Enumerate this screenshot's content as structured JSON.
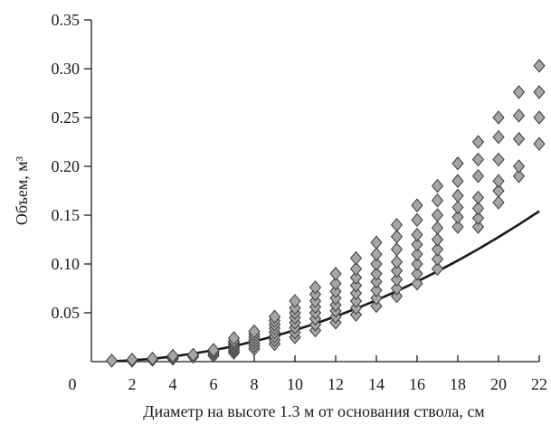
{
  "chart_data": {
    "type": "scatter",
    "title": "",
    "xlabel": "Диаметр на высоте 1.3 м от основания ствола, см",
    "ylabel": "Объем, м³",
    "xlim": [
      0,
      22
    ],
    "ylim": [
      0,
      0.35
    ],
    "x_ticks": [
      "0",
      "2",
      "4",
      "6",
      "8",
      "10",
      "12",
      "14",
      "16",
      "18",
      "20",
      "22"
    ],
    "y_ticks": [
      "0.05",
      "0.10",
      "0.15",
      "0.20",
      "0.25",
      "0.30",
      "0.35"
    ],
    "grid": false,
    "legend": "none",
    "marker": "diamond",
    "point_color": "#a6a6a6",
    "line_color": "#1a1a1a",
    "series": [
      {
        "type": "scatter",
        "points": [
          [
            1,
            0.001
          ],
          [
            2,
            0.001
          ],
          [
            2,
            0.002
          ],
          [
            3,
            0.002
          ],
          [
            3,
            0.003
          ],
          [
            4,
            0.003
          ],
          [
            4,
            0.004
          ],
          [
            4,
            0.006
          ],
          [
            5,
            0.005
          ],
          [
            5,
            0.007
          ],
          [
            6,
            0.006
          ],
          [
            6,
            0.008
          ],
          [
            6,
            0.01
          ],
          [
            6,
            0.012
          ],
          [
            7,
            0.009
          ],
          [
            7,
            0.011
          ],
          [
            7,
            0.013
          ],
          [
            7,
            0.015
          ],
          [
            7,
            0.017
          ],
          [
            7,
            0.019
          ],
          [
            7,
            0.021
          ],
          [
            7,
            0.024
          ],
          [
            8,
            0.013
          ],
          [
            8,
            0.016
          ],
          [
            8,
            0.019
          ],
          [
            8,
            0.022
          ],
          [
            8,
            0.025
          ],
          [
            8,
            0.028
          ],
          [
            8,
            0.031
          ],
          [
            9,
            0.018
          ],
          [
            9,
            0.022
          ],
          [
            9,
            0.026
          ],
          [
            9,
            0.03
          ],
          [
            9,
            0.034
          ],
          [
            9,
            0.038
          ],
          [
            9,
            0.042
          ],
          [
            9,
            0.046
          ],
          [
            10,
            0.025
          ],
          [
            10,
            0.03
          ],
          [
            10,
            0.035
          ],
          [
            10,
            0.04
          ],
          [
            10,
            0.045
          ],
          [
            10,
            0.05
          ],
          [
            10,
            0.055
          ],
          [
            10,
            0.062
          ],
          [
            11,
            0.032
          ],
          [
            11,
            0.038
          ],
          [
            11,
            0.044
          ],
          [
            11,
            0.05
          ],
          [
            11,
            0.056
          ],
          [
            11,
            0.062
          ],
          [
            11,
            0.069
          ],
          [
            11,
            0.076
          ],
          [
            12,
            0.04
          ],
          [
            12,
            0.046
          ],
          [
            12,
            0.052
          ],
          [
            12,
            0.058
          ],
          [
            12,
            0.065
          ],
          [
            12,
            0.072
          ],
          [
            12,
            0.08
          ],
          [
            12,
            0.09
          ],
          [
            13,
            0.048
          ],
          [
            13,
            0.055
          ],
          [
            13,
            0.062
          ],
          [
            13,
            0.07
          ],
          [
            13,
            0.078
          ],
          [
            13,
            0.086
          ],
          [
            13,
            0.095
          ],
          [
            13,
            0.106
          ],
          [
            14,
            0.057
          ],
          [
            14,
            0.065
          ],
          [
            14,
            0.073
          ],
          [
            14,
            0.082
          ],
          [
            14,
            0.09
          ],
          [
            14,
            0.1
          ],
          [
            14,
            0.11
          ],
          [
            14,
            0.122
          ],
          [
            15,
            0.067
          ],
          [
            15,
            0.075
          ],
          [
            15,
            0.084
          ],
          [
            15,
            0.093
          ],
          [
            15,
            0.102
          ],
          [
            15,
            0.115
          ],
          [
            15,
            0.128
          ],
          [
            15,
            0.14
          ],
          [
            16,
            0.08
          ],
          [
            16,
            0.09
          ],
          [
            16,
            0.1
          ],
          [
            16,
            0.11
          ],
          [
            16,
            0.12
          ],
          [
            16,
            0.13
          ],
          [
            16,
            0.145
          ],
          [
            16,
            0.16
          ],
          [
            17,
            0.095
          ],
          [
            17,
            0.105
          ],
          [
            17,
            0.115
          ],
          [
            17,
            0.125
          ],
          [
            17,
            0.137
          ],
          [
            17,
            0.15
          ],
          [
            17,
            0.165
          ],
          [
            17,
            0.18
          ],
          [
            18,
            0.138
          ],
          [
            18,
            0.148
          ],
          [
            18,
            0.158
          ],
          [
            18,
            0.17
          ],
          [
            18,
            0.185
          ],
          [
            18,
            0.203
          ],
          [
            19,
            0.138
          ],
          [
            19,
            0.147
          ],
          [
            19,
            0.157
          ],
          [
            19,
            0.168
          ],
          [
            19,
            0.19
          ],
          [
            19,
            0.207
          ],
          [
            19,
            0.225
          ],
          [
            20,
            0.163
          ],
          [
            20,
            0.175
          ],
          [
            20,
            0.185
          ],
          [
            20,
            0.207
          ],
          [
            20,
            0.23
          ],
          [
            20,
            0.25
          ],
          [
            21,
            0.19
          ],
          [
            21,
            0.2
          ],
          [
            21,
            0.228
          ],
          [
            21,
            0.252
          ],
          [
            21,
            0.276
          ],
          [
            22,
            0.223
          ],
          [
            22,
            0.25
          ],
          [
            22,
            0.276
          ],
          [
            22,
            0.303
          ]
        ]
      },
      {
        "type": "line",
        "x": [
          1,
          2,
          3,
          4,
          5,
          6,
          7,
          8,
          9,
          10,
          11,
          12,
          13,
          14,
          15,
          16,
          17,
          18,
          19,
          20,
          21,
          22
        ],
        "y": [
          0.0004,
          0.0014,
          0.003,
          0.0053,
          0.0082,
          0.0117,
          0.0159,
          0.0207,
          0.0262,
          0.0322,
          0.039,
          0.0463,
          0.0543,
          0.0629,
          0.0721,
          0.082,
          0.0924,
          0.1035,
          0.1152,
          0.1276,
          0.1405,
          0.1541
        ]
      }
    ]
  }
}
